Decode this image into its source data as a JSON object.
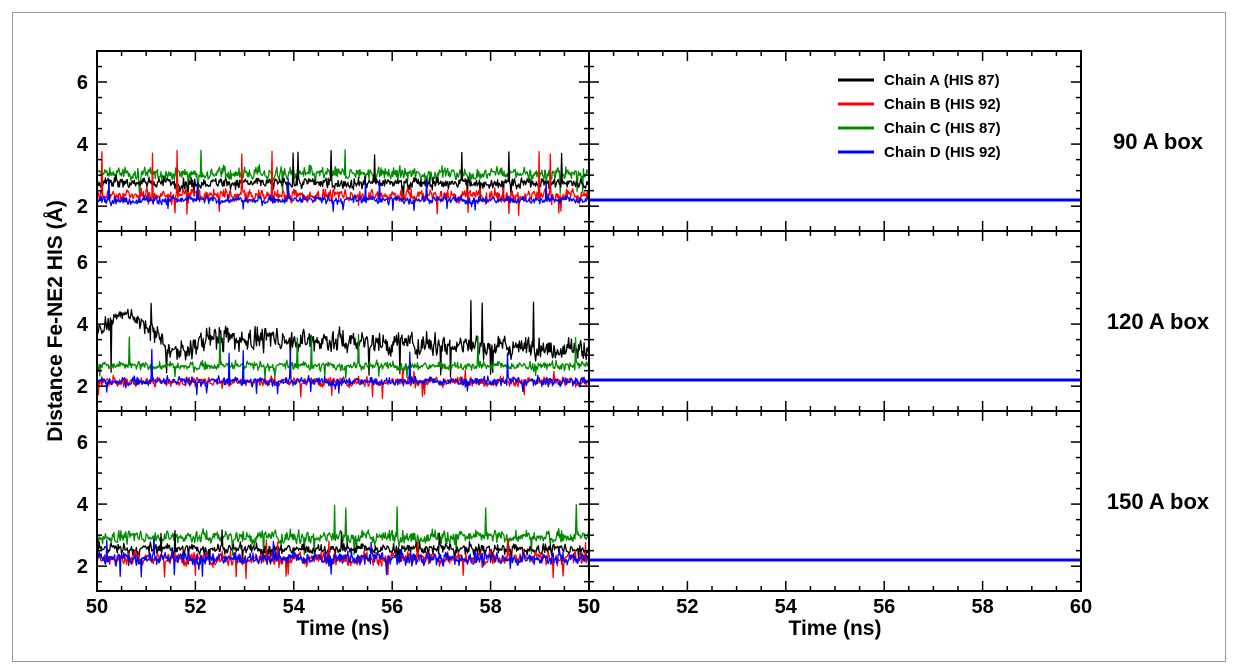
{
  "chart_data": {
    "type": "line",
    "ylabel": "Distance Fe-NE2 HIS (Å)",
    "xlabel": "Time (ns)",
    "xlim": [
      50,
      60
    ],
    "ylim": [
      1.2,
      7.0
    ],
    "x_ticks": [
      50,
      52,
      54,
      56,
      58,
      60
    ],
    "y_ticks": [
      2,
      4,
      6
    ],
    "grid": false,
    "legend_position": "top-right",
    "legend": [
      {
        "name": "Chain A (HIS 87)",
        "color": "#000000"
      },
      {
        "name": "Chain B (HIS 92)",
        "color": "#ff0000"
      },
      {
        "name": "Chain C (HIS 87)",
        "color": "#008c00"
      },
      {
        "name": "Chain D (HIS 92)",
        "color": "#0000ff"
      }
    ],
    "rows": [
      {
        "label": "90 A box",
        "left": {
          "series": [
            {
              "name": "Chain C (HIS 87)",
              "color": "#008c00",
              "mean": 3.05,
              "range": [
                2.4,
                3.9
              ]
            },
            {
              "name": "Chain A (HIS 87)",
              "color": "#000000",
              "mean": 2.75,
              "range": [
                2.2,
                3.8
              ]
            },
            {
              "name": "Chain B (HIS 92)",
              "color": "#ff0000",
              "mean": 2.35,
              "range": [
                1.7,
                3.8
              ]
            },
            {
              "name": "Chain D (HIS 92)",
              "color": "#0000ff",
              "mean": 2.2,
              "range": [
                1.8,
                2.9
              ]
            }
          ]
        },
        "right": {
          "series": [
            {
              "name": "Chain D (HIS 92)",
              "color": "#0000ff",
              "value": 2.2
            }
          ]
        }
      },
      {
        "label": "120 A box",
        "left": {
          "series": [
            {
              "name": "Chain A (HIS 87)",
              "color": "#000000",
              "mean_start": 3.7,
              "mean_end": 3.2,
              "range": [
                2.3,
                4.8
              ]
            },
            {
              "name": "Chain C (HIS 87)",
              "color": "#008c00",
              "mean": 2.65,
              "range": [
                2.2,
                3.7
              ]
            },
            {
              "name": "Chain B (HIS 92)",
              "color": "#ff0000",
              "mean": 2.15,
              "range": [
                1.6,
                2.6
              ]
            },
            {
              "name": "Chain D (HIS 92)",
              "color": "#0000ff",
              "mean": 2.15,
              "range": [
                1.7,
                3.2
              ]
            }
          ]
        },
        "right": {
          "series": [
            {
              "name": "Chain D (HIS 92)",
              "color": "#0000ff",
              "value": 2.2
            }
          ]
        }
      },
      {
        "label": "150 A box",
        "left": {
          "series": [
            {
              "name": "Chain C (HIS 87)",
              "color": "#008c00",
              "mean": 2.95,
              "range": [
                2.3,
                4.0
              ]
            },
            {
              "name": "Chain A (HIS 87)",
              "color": "#000000",
              "mean": 2.55,
              "range": [
                2.0,
                3.2
              ]
            },
            {
              "name": "Chain B (HIS 92)",
              "color": "#ff0000",
              "mean": 2.25,
              "range": [
                1.6,
                2.9
              ]
            },
            {
              "name": "Chain D (HIS 92)",
              "color": "#0000ff",
              "mean": 2.25,
              "range": [
                1.6,
                2.9
              ]
            }
          ]
        },
        "right": {
          "series": [
            {
              "name": "Chain D (HIS 92)",
              "color": "#0000ff",
              "value": 2.2
            }
          ]
        }
      }
    ]
  }
}
